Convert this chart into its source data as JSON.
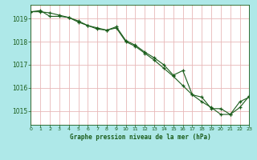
{
  "title": "Graphe pression niveau de la mer (hPa)",
  "fig_bg_color": "#aee8e8",
  "plot_bg_color": "#ffffff",
  "grid_color": "#e8b8b8",
  "line_color": "#1a5c1a",
  "x_min": 0,
  "x_max": 23,
  "y_min": 1014.4,
  "y_max": 1019.6,
  "y_ticks": [
    1015,
    1016,
    1017,
    1018,
    1019
  ],
  "x_ticks": [
    0,
    1,
    2,
    3,
    4,
    5,
    6,
    7,
    8,
    9,
    10,
    11,
    12,
    13,
    14,
    15,
    16,
    17,
    18,
    19,
    20,
    21,
    22,
    23
  ],
  "series1": [
    1019.3,
    1019.35,
    1019.1,
    1019.1,
    1019.05,
    1018.85,
    1018.7,
    1018.55,
    1018.5,
    1018.65,
    1018.05,
    1017.85,
    1017.55,
    1017.3,
    1017.0,
    1016.55,
    1016.75,
    1015.7,
    1015.6,
    1015.1,
    1015.1,
    1014.85,
    1015.15,
    1015.65
  ],
  "series2": [
    1019.3,
    1019.3,
    1019.25,
    1019.15,
    1019.05,
    1018.9,
    1018.7,
    1018.6,
    1018.5,
    1018.6,
    1018.0,
    1017.8,
    1017.5,
    1017.2,
    1016.85,
    1016.5,
    1016.1,
    1015.7,
    1015.4,
    1015.15,
    1014.85,
    1014.85,
    1015.4,
    1015.6
  ]
}
